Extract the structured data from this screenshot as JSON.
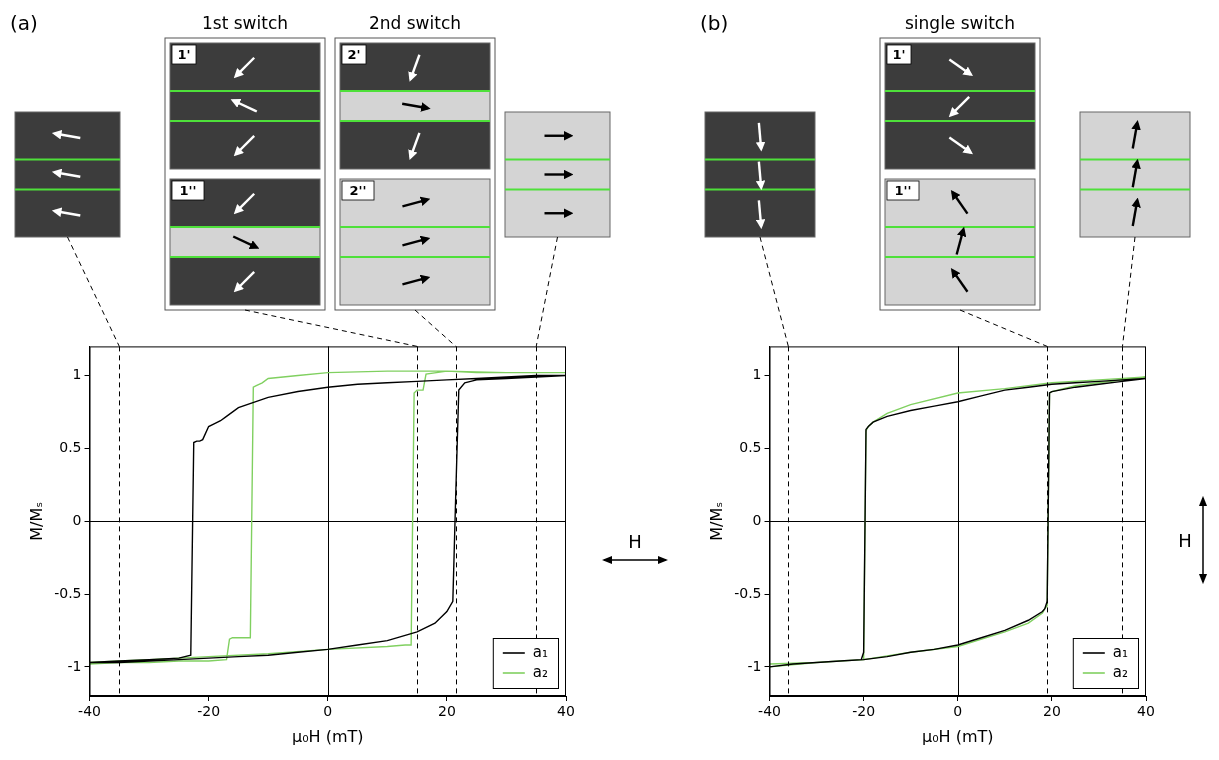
{
  "chart_data": [
    {
      "type": "line",
      "panel": "(a)",
      "x_label": "μ₀H (mT)",
      "y_label": "M/Mₛ",
      "xlim": [
        -40,
        40
      ],
      "xticks": [
        -40,
        -20,
        0,
        20,
        40
      ],
      "ylim": [
        -1.2,
        1.2
      ],
      "yticks": [
        -1,
        -0.5,
        0,
        0.5,
        1
      ],
      "grid": false,
      "legend": "lower right",
      "field_label": "H",
      "snapshots": [
        {
          "h": -35
        },
        {
          "h": 15,
          "title": "1st switch",
          "frames": [
            "1'",
            "1''"
          ]
        },
        {
          "h": 21.5,
          "title": "2nd switch",
          "frames": [
            "2'",
            "2''"
          ]
        },
        {
          "h": 35
        }
      ],
      "series": [
        {
          "name": "a₁",
          "color": "#000000",
          "x": [
            -40,
            -35,
            -30,
            -25,
            -20,
            -15,
            -10,
            -5,
            0,
            5,
            10,
            15,
            18,
            20,
            21,
            21.5,
            22,
            23,
            25,
            30,
            35,
            40,
            35,
            30,
            25,
            20,
            15,
            10,
            5,
            0,
            -5,
            -10,
            -15,
            -17,
            -18,
            -19,
            -20,
            -21,
            -21.5,
            -22,
            -22.5,
            -23,
            -25,
            -30,
            -35,
            -40
          ],
          "values": [
            -0.97,
            -0.97,
            -0.96,
            -0.95,
            -0.94,
            -0.93,
            -0.92,
            -0.9,
            -0.88,
            -0.85,
            -0.82,
            -0.76,
            -0.7,
            -0.62,
            -0.55,
            0.2,
            0.9,
            0.95,
            0.97,
            0.98,
            0.99,
            1.0,
            1.0,
            0.99,
            0.98,
            0.97,
            0.96,
            0.95,
            0.94,
            0.92,
            0.89,
            0.85,
            0.78,
            0.72,
            0.69,
            0.67,
            0.65,
            0.56,
            0.55,
            0.55,
            0.54,
            -0.92,
            -0.94,
            -0.95,
            -0.96,
            -0.97
          ]
        },
        {
          "name": "a₂",
          "color": "#80d060",
          "x": [
            -40,
            -35,
            -30,
            -20,
            -10,
            0,
            10,
            13,
            14,
            14.5,
            15,
            15.5,
            16,
            16.5,
            20,
            25,
            30,
            40,
            30,
            20,
            10,
            0,
            -5,
            -10,
            -11,
            -12,
            -12.5,
            -13,
            -14,
            -15,
            -16,
            -16.5,
            -17,
            -20,
            -25,
            -30,
            -35,
            -40
          ],
          "values": [
            -0.97,
            -0.96,
            -0.95,
            -0.93,
            -0.91,
            -0.88,
            -0.86,
            -0.85,
            -0.85,
            0.88,
            0.9,
            0.9,
            0.9,
            1.01,
            1.03,
            1.02,
            1.02,
            1.02,
            1.02,
            1.03,
            1.03,
            1.02,
            1.0,
            0.98,
            0.95,
            0.93,
            0.92,
            -0.8,
            -0.8,
            -0.8,
            -0.8,
            -0.81,
            -0.95,
            -0.96,
            -0.96,
            -0.97,
            -0.97,
            -0.98
          ]
        }
      ]
    },
    {
      "type": "line",
      "panel": "(b)",
      "x_label": "μ₀H (mT)",
      "y_label": "M/Mₛ",
      "xlim": [
        -40,
        40
      ],
      "xticks": [
        -40,
        -20,
        0,
        20,
        40
      ],
      "ylim": [
        -1.2,
        1.2
      ],
      "yticks": [
        -1,
        -0.5,
        0,
        0.5,
        1
      ],
      "grid": false,
      "legend": "lower right",
      "field_label": "H",
      "snapshots": [
        {
          "h": -36
        },
        {
          "h": 19,
          "title": "single switch",
          "frames": [
            "1'",
            "1''"
          ]
        },
        {
          "h": 35
        }
      ],
      "series": [
        {
          "name": "a₁",
          "color": "#000000",
          "x": [
            -40,
            -35,
            -30,
            -25,
            -20,
            -15,
            -10,
            -5,
            0,
            5,
            10,
            15,
            18,
            18.5,
            19,
            19.5,
            20,
            25,
            30,
            35,
            40,
            35,
            30,
            25,
            20,
            15,
            10,
            5,
            0,
            -5,
            -10,
            -15,
            -18,
            -19,
            -19.5,
            -20,
            -20.5,
            -25,
            -30,
            -35,
            -40
          ],
          "values": [
            -1.0,
            -0.98,
            -0.97,
            -0.96,
            -0.95,
            -0.93,
            -0.9,
            -0.88,
            -0.85,
            -0.8,
            -0.75,
            -0.68,
            -0.62,
            -0.6,
            -0.55,
            0.88,
            0.89,
            0.92,
            0.94,
            0.96,
            0.98,
            0.97,
            0.96,
            0.95,
            0.94,
            0.92,
            0.9,
            0.86,
            0.82,
            0.79,
            0.76,
            0.72,
            0.68,
            0.65,
            0.63,
            -0.9,
            -0.95,
            -0.96,
            -0.97,
            -0.98,
            -1.0
          ]
        },
        {
          "name": "a₂",
          "color": "#80d060",
          "x": [
            -40,
            -30,
            -20,
            -10,
            0,
            10,
            15,
            18,
            18.5,
            19,
            19.5,
            20,
            25,
            30,
            40,
            30,
            20,
            10,
            0,
            -10,
            -15,
            -18,
            -19,
            -19.5,
            -20,
            -25,
            -30,
            -40
          ],
          "values": [
            -0.98,
            -0.97,
            -0.95,
            -0.9,
            -0.86,
            -0.76,
            -0.7,
            -0.63,
            -0.6,
            -0.58,
            0.88,
            0.89,
            0.93,
            0.95,
            0.99,
            0.97,
            0.95,
            0.91,
            0.88,
            0.8,
            0.74,
            0.68,
            0.65,
            0.62,
            -0.95,
            -0.96,
            -0.97,
            -1.0
          ]
        }
      ]
    }
  ]
}
